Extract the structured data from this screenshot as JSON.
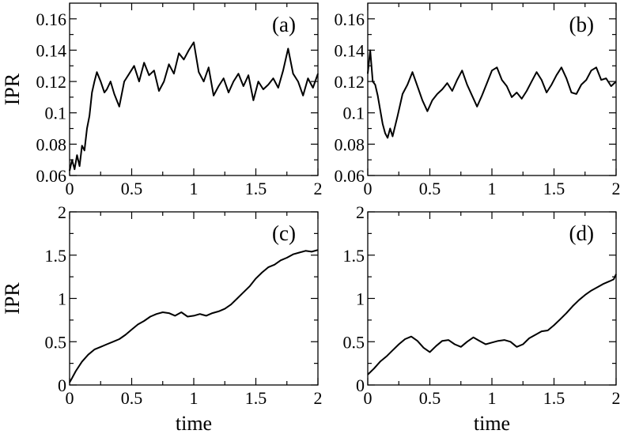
{
  "chart_data": [
    {
      "type": "line",
      "panel_label": "(a)",
      "ylabel": "IPR",
      "xlabel": "",
      "xlim": [
        0,
        2
      ],
      "ylim": [
        0.06,
        0.17
      ],
      "xticks": [
        0,
        0.5,
        1,
        1.5,
        2
      ],
      "xtick_labels": [
        "0",
        "0.5",
        "1",
        "1.5",
        "2"
      ],
      "yticks": [
        0.06,
        0.08,
        0.1,
        0.12,
        0.14,
        0.16
      ],
      "ytick_labels": [
        "0.06",
        "0.08",
        "0.1",
        "0.12",
        "0.14",
        "0.16"
      ],
      "grid": false,
      "series": [
        {
          "x": [
            0,
            0.02,
            0.04,
            0.06,
            0.08,
            0.1,
            0.12,
            0.14,
            0.16,
            0.18,
            0.2,
            0.22,
            0.25,
            0.28,
            0.3,
            0.33,
            0.36,
            0.4,
            0.44,
            0.48,
            0.52,
            0.56,
            0.6,
            0.64,
            0.68,
            0.72,
            0.76,
            0.8,
            0.84,
            0.88,
            0.92,
            0.96,
            1.0,
            1.04,
            1.08,
            1.12,
            1.16,
            1.2,
            1.24,
            1.28,
            1.32,
            1.36,
            1.4,
            1.44,
            1.48,
            1.52,
            1.56,
            1.6,
            1.64,
            1.68,
            1.72,
            1.76,
            1.8,
            1.84,
            1.88,
            1.92,
            1.96,
            2.0
          ],
          "y": [
            0.063,
            0.07,
            0.064,
            0.073,
            0.066,
            0.079,
            0.076,
            0.09,
            0.098,
            0.113,
            0.12,
            0.126,
            0.12,
            0.113,
            0.115,
            0.12,
            0.112,
            0.104,
            0.12,
            0.125,
            0.13,
            0.12,
            0.132,
            0.124,
            0.127,
            0.114,
            0.12,
            0.131,
            0.125,
            0.138,
            0.134,
            0.14,
            0.145,
            0.126,
            0.12,
            0.129,
            0.111,
            0.117,
            0.122,
            0.113,
            0.12,
            0.125,
            0.117,
            0.124,
            0.108,
            0.12,
            0.115,
            0.118,
            0.122,
            0.116,
            0.127,
            0.141,
            0.125,
            0.12,
            0.111,
            0.122,
            0.116,
            0.125
          ]
        }
      ]
    },
    {
      "type": "line",
      "panel_label": "(b)",
      "ylabel": "",
      "xlabel": "",
      "xlim": [
        0,
        2
      ],
      "ylim": [
        0.06,
        0.17
      ],
      "xticks": [
        0,
        0.5,
        1,
        1.5,
        2
      ],
      "xtick_labels": [
        "0",
        "0.5",
        "1",
        "1.5",
        "2"
      ],
      "yticks": [
        0.06,
        0.08,
        0.1,
        0.12,
        0.14,
        0.16
      ],
      "ytick_labels": [
        "0.06",
        "0.08",
        "0.1",
        "0.12",
        "0.14",
        "0.16"
      ],
      "grid": false,
      "series": [
        {
          "x": [
            0,
            0.02,
            0.04,
            0.06,
            0.08,
            0.1,
            0.12,
            0.14,
            0.16,
            0.18,
            0.2,
            0.24,
            0.28,
            0.32,
            0.36,
            0.4,
            0.44,
            0.48,
            0.52,
            0.56,
            0.6,
            0.64,
            0.68,
            0.72,
            0.76,
            0.8,
            0.84,
            0.88,
            0.92,
            0.96,
            1.0,
            1.04,
            1.08,
            1.12,
            1.16,
            1.2,
            1.24,
            1.28,
            1.32,
            1.36,
            1.4,
            1.44,
            1.48,
            1.52,
            1.56,
            1.6,
            1.64,
            1.68,
            1.72,
            1.76,
            1.8,
            1.84,
            1.88,
            1.92,
            1.96,
            2.0
          ],
          "y": [
            0.125,
            0.14,
            0.12,
            0.118,
            0.111,
            0.102,
            0.093,
            0.087,
            0.084,
            0.09,
            0.085,
            0.098,
            0.112,
            0.118,
            0.126,
            0.117,
            0.108,
            0.101,
            0.108,
            0.112,
            0.115,
            0.119,
            0.114,
            0.121,
            0.127,
            0.118,
            0.111,
            0.104,
            0.111,
            0.119,
            0.127,
            0.129,
            0.121,
            0.117,
            0.11,
            0.113,
            0.109,
            0.114,
            0.12,
            0.126,
            0.121,
            0.113,
            0.118,
            0.124,
            0.129,
            0.122,
            0.113,
            0.112,
            0.118,
            0.121,
            0.127,
            0.129,
            0.121,
            0.122,
            0.117,
            0.12
          ]
        }
      ]
    },
    {
      "type": "line",
      "panel_label": "(c)",
      "ylabel": "IPR",
      "xlabel": "time",
      "xlim": [
        0,
        2
      ],
      "ylim": [
        0,
        2
      ],
      "xticks": [
        0,
        0.5,
        1,
        1.5,
        2
      ],
      "xtick_labels": [
        "0",
        "0.5",
        "1",
        "1.5",
        "2"
      ],
      "yticks": [
        0,
        0.5,
        1,
        1.5,
        2
      ],
      "ytick_labels": [
        "0",
        "0.5",
        "1",
        "1.5",
        "2"
      ],
      "grid": false,
      "series": [
        {
          "x": [
            0,
            0.02,
            0.05,
            0.1,
            0.15,
            0.2,
            0.25,
            0.3,
            0.35,
            0.4,
            0.45,
            0.5,
            0.55,
            0.6,
            0.65,
            0.7,
            0.75,
            0.8,
            0.85,
            0.9,
            0.95,
            1.0,
            1.05,
            1.1,
            1.15,
            1.2,
            1.25,
            1.3,
            1.35,
            1.4,
            1.45,
            1.5,
            1.55,
            1.6,
            1.65,
            1.7,
            1.75,
            1.8,
            1.85,
            1.9,
            1.95,
            2.0
          ],
          "y": [
            0.03,
            0.08,
            0.16,
            0.27,
            0.35,
            0.41,
            0.44,
            0.47,
            0.5,
            0.53,
            0.58,
            0.64,
            0.7,
            0.74,
            0.79,
            0.82,
            0.84,
            0.83,
            0.8,
            0.84,
            0.79,
            0.8,
            0.82,
            0.8,
            0.83,
            0.85,
            0.88,
            0.93,
            1.0,
            1.07,
            1.14,
            1.23,
            1.3,
            1.36,
            1.39,
            1.44,
            1.47,
            1.51,
            1.53,
            1.55,
            1.54,
            1.56
          ]
        }
      ]
    },
    {
      "type": "line",
      "panel_label": "(d)",
      "ylabel": "",
      "xlabel": "time",
      "xlim": [
        0,
        2
      ],
      "ylim": [
        0,
        2
      ],
      "xticks": [
        0,
        0.5,
        1,
        1.5,
        2
      ],
      "xtick_labels": [
        "0",
        "0.5",
        "1",
        "1.5",
        "2"
      ],
      "yticks": [
        0,
        0.5,
        1,
        1.5,
        2
      ],
      "ytick_labels": [
        "0",
        "0.5",
        "1",
        "1.5",
        "2"
      ],
      "grid": false,
      "series": [
        {
          "x": [
            0,
            0.05,
            0.1,
            0.15,
            0.2,
            0.25,
            0.3,
            0.35,
            0.4,
            0.45,
            0.5,
            0.55,
            0.6,
            0.65,
            0.7,
            0.75,
            0.8,
            0.85,
            0.9,
            0.95,
            1.0,
            1.05,
            1.1,
            1.15,
            1.2,
            1.25,
            1.3,
            1.35,
            1.4,
            1.45,
            1.5,
            1.55,
            1.6,
            1.65,
            1.7,
            1.75,
            1.8,
            1.85,
            1.9,
            1.95,
            1.98,
            2.0
          ],
          "y": [
            0.12,
            0.19,
            0.27,
            0.33,
            0.4,
            0.47,
            0.53,
            0.56,
            0.51,
            0.43,
            0.38,
            0.45,
            0.51,
            0.52,
            0.47,
            0.44,
            0.5,
            0.55,
            0.51,
            0.47,
            0.49,
            0.51,
            0.52,
            0.5,
            0.44,
            0.47,
            0.54,
            0.58,
            0.62,
            0.63,
            0.69,
            0.76,
            0.83,
            0.91,
            0.98,
            1.04,
            1.09,
            1.13,
            1.17,
            1.2,
            1.22,
            1.28
          ]
        }
      ]
    }
  ]
}
